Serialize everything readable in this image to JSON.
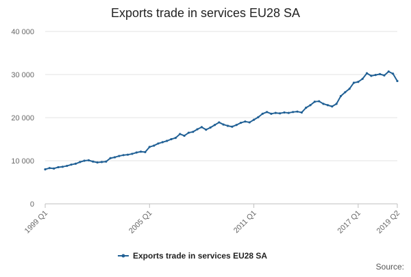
{
  "chart_data": {
    "type": "line",
    "title": "Exports trade in services EU28 SA",
    "xlabel": "",
    "ylabel": "",
    "ylim": [
      0,
      40000
    ],
    "yticks": [
      "0",
      "10 000",
      "20 000",
      "30 000",
      "40 000"
    ],
    "ytick_values": [
      0,
      10000,
      20000,
      30000,
      40000
    ],
    "xticks": [
      {
        "label": "1999 Q1",
        "index": 0
      },
      {
        "label": "2005 Q1",
        "index": 24
      },
      {
        "label": "2011 Q1",
        "index": 48
      },
      {
        "label": "2017 Q1",
        "index": 72
      },
      {
        "label": "2019 Q2",
        "index": 81
      }
    ],
    "x_start": "1999 Q1",
    "x_end": "2019 Q2",
    "grid": "horizontal",
    "legend_position": "bottom",
    "series": [
      {
        "name": "Exports trade in services EU28 SA",
        "color": "#206095",
        "values": [
          8000,
          8300,
          8200,
          8500,
          8600,
          8800,
          9100,
          9300,
          9700,
          10000,
          10100,
          9800,
          9600,
          9700,
          9800,
          10600,
          10800,
          11100,
          11300,
          11400,
          11600,
          11900,
          12100,
          12000,
          13200,
          13500,
          14000,
          14300,
          14600,
          15000,
          15300,
          16200,
          15800,
          16500,
          16700,
          17300,
          17800,
          17200,
          17700,
          18300,
          18900,
          18400,
          18100,
          17900,
          18300,
          18800,
          19100,
          18900,
          19500,
          20100,
          20900,
          21300,
          20900,
          21100,
          21000,
          21200,
          21100,
          21300,
          21400,
          21200,
          22300,
          22900,
          23700,
          23800,
          23200,
          22900,
          22600,
          23200,
          25000,
          25900,
          26700,
          28100,
          28300,
          29000,
          30300,
          29700,
          29900,
          30100,
          29800,
          30700,
          30200,
          28500
        ]
      }
    ]
  },
  "source_label": "Source:"
}
